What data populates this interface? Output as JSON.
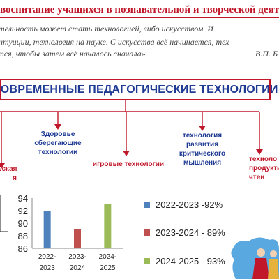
{
  "header": {
    "headline": "воспитание  учащихся в познавательной  и творческой деяте",
    "quote_line1": "ательность может стать технологией, либо искусством.  И",
    "quote_line2": "интуиции, технология на науке. С искусства всё начинается, тех",
    "quote_line3": "ется, чтобы затем всё началось сначала»",
    "author": "В.П.  Б"
  },
  "title": "СОВРЕМЕННЫЕ ПЕДАГОГИЧЕСКИЕ ТЕХНОЛОГИИ",
  "technologies": {
    "health": [
      "Здоровье",
      "сберегающие",
      "технологии"
    ],
    "games": "игровые технологии",
    "critical": [
      "технология",
      "развития",
      "критического",
      "мышления"
    ],
    "product": [
      "техноло",
      "продукти",
      "чтен"
    ],
    "left_partial": [
      "льская",
      "я"
    ]
  },
  "colors": {
    "accent_red": "#c0182a",
    "title_blue": "#1f3a93",
    "bar_blue": "#4f81bd",
    "bar_red": "#c0504d",
    "bar_green": "#9bbb59"
  },
  "legend": [
    {
      "label": "2022-2023  -92%",
      "color": "#4f81bd"
    },
    {
      "label": "2023-2024 - 89%",
      "color": "#c0504d"
    },
    {
      "label": "2024-2025 - 93%",
      "color": "#9bbb59"
    }
  ],
  "chart_data": {
    "type": "bar",
    "categories": [
      [
        "2022-",
        "2023"
      ],
      [
        "2023-",
        "2024"
      ],
      [
        "2024-",
        "2025"
      ]
    ],
    "values": [
      92,
      89,
      93
    ],
    "colors": [
      "#4f81bd",
      "#c0504d",
      "#9bbb59"
    ],
    "ylim": [
      86,
      94
    ],
    "yticks": [
      "94",
      "92",
      "90",
      "88",
      "86"
    ],
    "grid": false
  }
}
